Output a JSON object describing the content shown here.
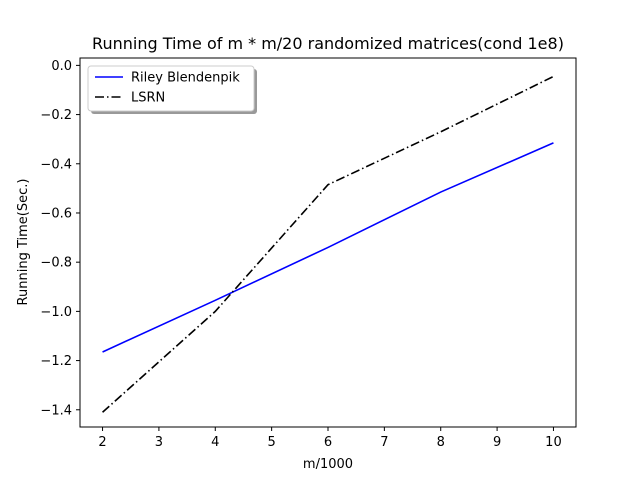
{
  "chart_data": {
    "type": "line",
    "title": "Running Time of m * m/20 randomized matrices(cond 1e8)",
    "xlabel": "m/1000",
    "ylabel": "Running Time(Sec.)",
    "xlim": [
      1.6,
      10.4
    ],
    "ylim": [
      -1.47,
      0.03
    ],
    "xticks": [
      2,
      3,
      4,
      5,
      6,
      7,
      8,
      9,
      10
    ],
    "xtick_labels": [
      "2",
      "3",
      "4",
      "5",
      "6",
      "7",
      "8",
      "9",
      "10"
    ],
    "yticks": [
      0.0,
      -0.2,
      -0.4,
      -0.6,
      -0.8,
      -1.0,
      -1.2,
      -1.4
    ],
    "ytick_labels": [
      "0.0",
      "−0.2",
      "−0.4",
      "−0.6",
      "−0.8",
      "−1.0",
      "−1.2",
      "−1.4"
    ],
    "grid": false,
    "legend_position": "upper-left",
    "series": [
      {
        "name": "Riley Blendenpik",
        "color": "#0000ff",
        "linestyle": "solid",
        "x": [
          2,
          4,
          6,
          8,
          10
        ],
        "y": [
          -1.165,
          -0.955,
          -0.74,
          -0.515,
          -0.315
        ]
      },
      {
        "name": "LSRN",
        "color": "#000000",
        "linestyle": "dashdot",
        "x": [
          2,
          4,
          6,
          8,
          10
        ],
        "y": [
          -1.41,
          -1.0,
          -0.485,
          -0.27,
          -0.045
        ]
      }
    ]
  }
}
